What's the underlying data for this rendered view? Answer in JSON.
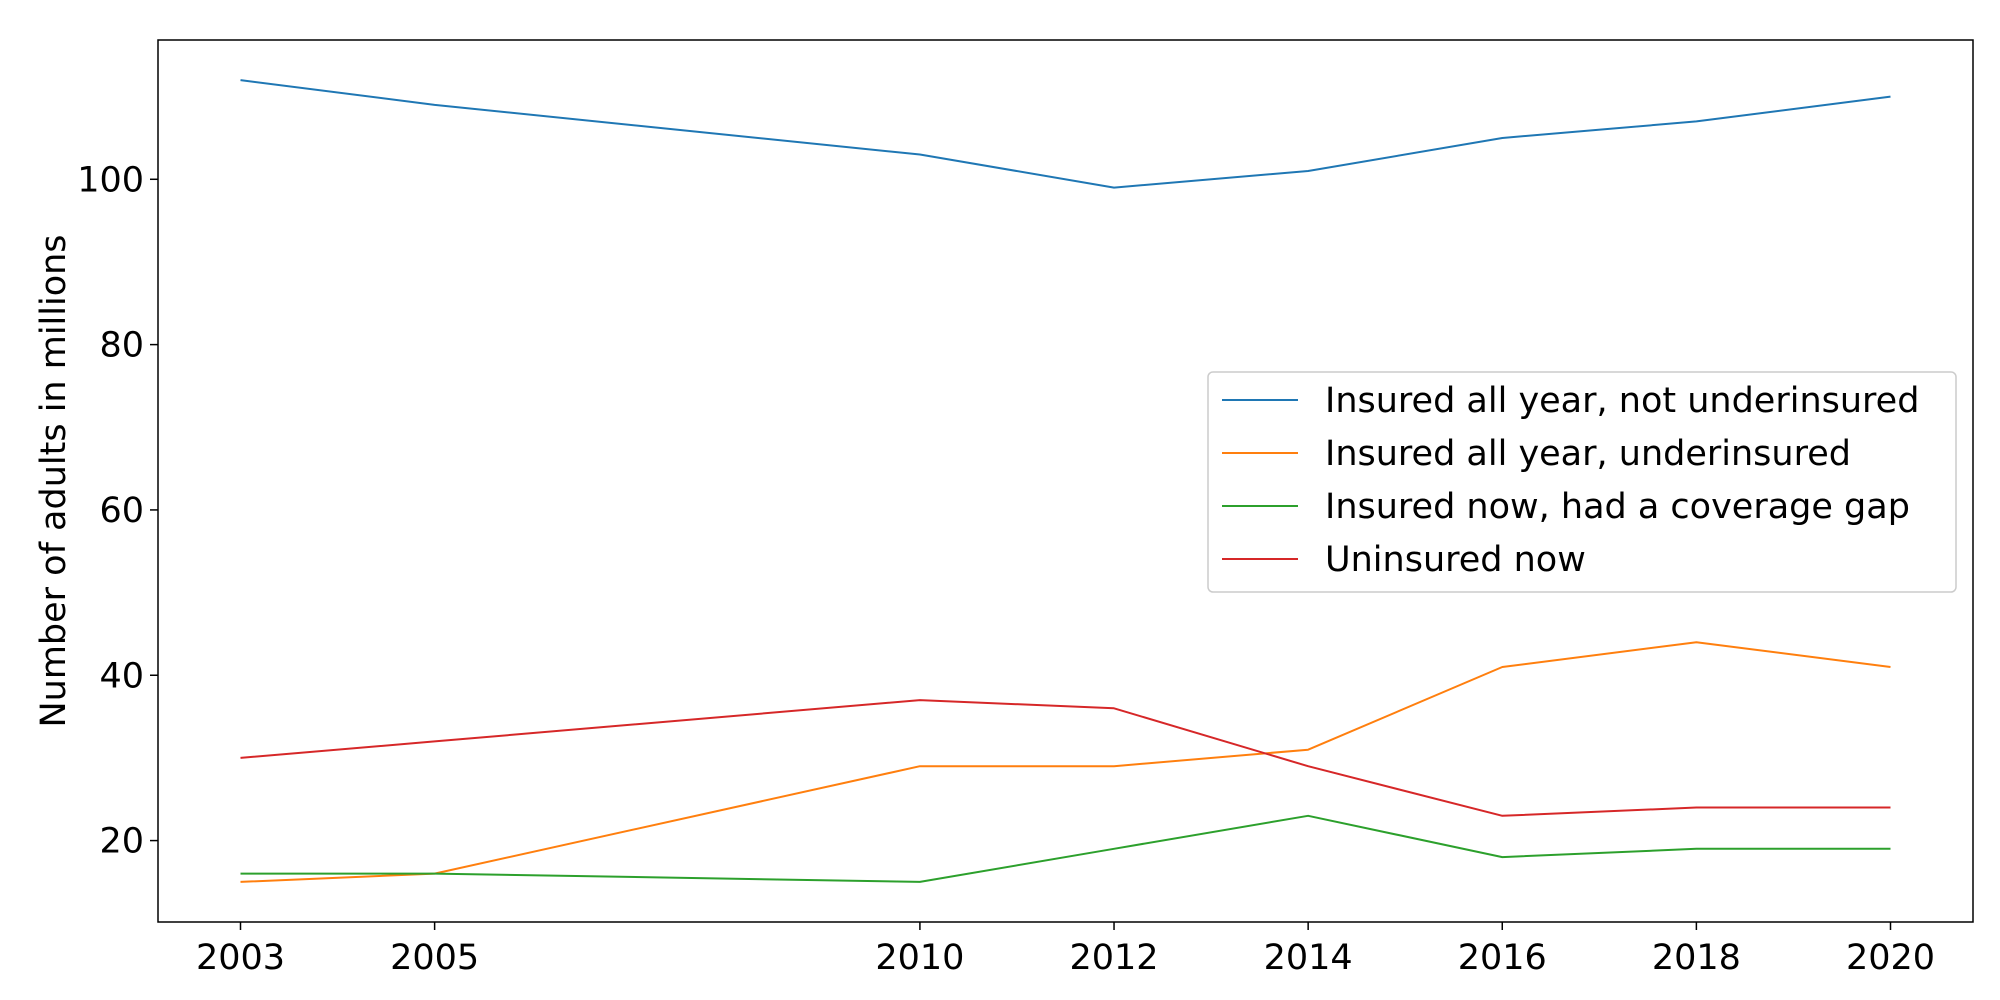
{
  "chart_data": {
    "type": "line",
    "title": "",
    "xlabel": "",
    "ylabel": "Number of adults in millions",
    "x": [
      2003,
      2005,
      2010,
      2012,
      2014,
      2016,
      2018,
      2020
    ],
    "xticks": [
      2003,
      2005,
      2010,
      2012,
      2014,
      2016,
      2018,
      2020
    ],
    "yticks": [
      20,
      40,
      60,
      80,
      100
    ],
    "xlim": [
      2002.15,
      2020.85
    ],
    "ylim": [
      10.15,
      116.85
    ],
    "grid": false,
    "legend_position": "center-right",
    "series": [
      {
        "name": "Insured all year, not underinsured",
        "color": "#1f77b4",
        "values": [
          112,
          109,
          103,
          99,
          101,
          105,
          107,
          110
        ]
      },
      {
        "name": "Insured all year, underinsured",
        "color": "#ff7f0e",
        "values": [
          15,
          16,
          29,
          29,
          31,
          41,
          44,
          41
        ]
      },
      {
        "name": "Insured now, had a coverage gap",
        "color": "#2ca02c",
        "values": [
          16,
          16,
          15,
          19,
          23,
          18,
          19,
          19
        ]
      },
      {
        "name": "Uninsured now",
        "color": "#d62728",
        "values": [
          30,
          32,
          37,
          36,
          29,
          23,
          24,
          24
        ]
      }
    ]
  }
}
